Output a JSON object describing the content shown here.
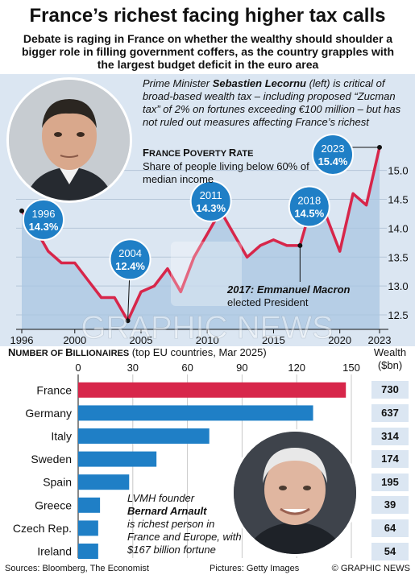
{
  "header": {
    "title": "France’s richest facing higher tax calls",
    "subtitle": "Debate is raging in France on whether the wealthy should shoulder a bigger role in filling government coffers, as the country grapples with the largest budget deficit in the euro area"
  },
  "lecornu_caption": {
    "pre": "Prime Minister ",
    "name": "Sebastien Lecornu",
    "post": " (left) is critical of broad-based wealth tax – including proposed “Zucman tax” of 2% on fortunes exceeding €100 million – but has not ruled out measures affecting France’s richest"
  },
  "macron_note": {
    "year": "2017:",
    "name": " Emmanuel Macron",
    "text": "elected President"
  },
  "arnault_caption": {
    "pre": "LVMH founder",
    "name": "Bernard Arnault",
    "post": "is richest person in France and Europe, with $167 billion fortune"
  },
  "colors": {
    "accent": "#d7264a",
    "bar_blue": "#1f7fc6",
    "panel": "#dbe6f2",
    "badge": "#1f7fc6"
  },
  "chart_data": [
    {
      "type": "line",
      "title_first": "F",
      "title_rest": "RANCE ",
      "title_first2": "P",
      "title_rest2": "OVERTY ",
      "title_first3": "R",
      "title_rest3": "ATE",
      "subtitle": "Share of people living below 60% of median income",
      "x": [
        1996,
        1997,
        1998,
        1999,
        2000,
        2001,
        2002,
        2003,
        2004,
        2005,
        2006,
        2007,
        2008,
        2009,
        2010,
        2011,
        2012,
        2013,
        2014,
        2015,
        2016,
        2017,
        2018,
        2019,
        2020,
        2021,
        2022,
        2023
      ],
      "y": [
        14.3,
        14.0,
        13.6,
        13.4,
        13.4,
        13.1,
        12.8,
        12.8,
        12.4,
        12.9,
        13.0,
        13.3,
        12.9,
        13.5,
        13.9,
        14.3,
        13.9,
        13.5,
        13.7,
        13.8,
        13.7,
        13.7,
        14.5,
        14.2,
        13.6,
        14.6,
        14.4,
        15.4
      ],
      "xticks": [
        "1996",
        "2000",
        "2005",
        "2010",
        "2015",
        "2020",
        "2023"
      ],
      "yticks": [
        "12.5",
        "13.0",
        "13.5",
        "14.0",
        "14.5",
        "15.0"
      ],
      "ylim": [
        12.25,
        15.65
      ],
      "callouts": [
        {
          "year": "1996",
          "value": "14.3%"
        },
        {
          "year": "2004",
          "value": "12.4%"
        },
        {
          "year": "2011",
          "value": "14.3%"
        },
        {
          "year": "2018",
          "value": "14.5%"
        },
        {
          "year": "2023",
          "value": "15.4%"
        }
      ]
    },
    {
      "type": "bar",
      "title_first": "N",
      "title_rest": "UMBER OF ",
      "title_first2": "B",
      "title_rest2": "ILLIONAIRES",
      "note": " (top EU countries, Mar 2025)",
      "wealth_label": "Wealth",
      "wealth_unit": "($bn)",
      "categories": [
        "France",
        "Germany",
        "Italy",
        "Sweden",
        "Spain",
        "Greece",
        "Czech Rep.",
        "Ireland"
      ],
      "values": [
        147,
        129,
        72,
        43,
        28,
        12,
        11,
        11
      ],
      "wealth": [
        "730",
        "637",
        "314",
        "174",
        "195",
        "39",
        "64",
        "54"
      ],
      "xticks": [
        "0",
        "30",
        "60",
        "90",
        "120",
        "150"
      ],
      "xlim": [
        0,
        150
      ]
    }
  ],
  "footer": {
    "sources": "Sources: Bloomberg, The Economist",
    "pictures": "Pictures: Getty Images",
    "copyright": "© GRAPHIC NEWS"
  },
  "watermark": "GRAPHIC NEWS"
}
